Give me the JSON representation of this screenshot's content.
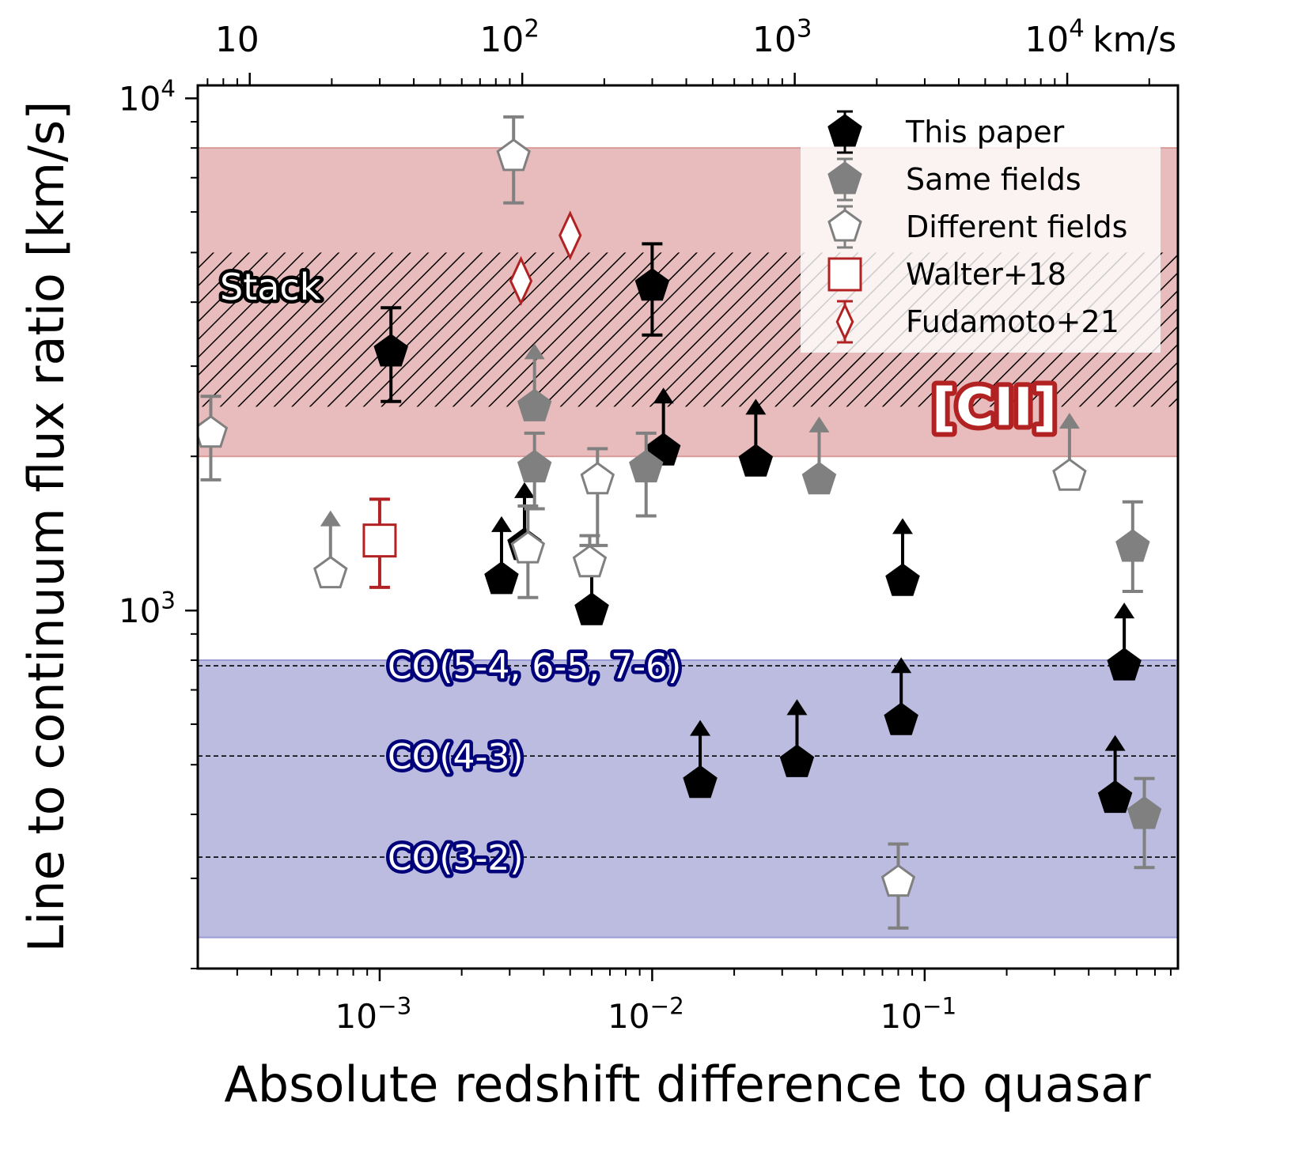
{
  "chart_data": {
    "type": "scatter",
    "xscale": "log",
    "yscale": "log",
    "xlim": [
      0.000215,
      0.85
    ],
    "ylim": [
      200,
      10600
    ],
    "xlabel": "Absolute redshift difference to quasar",
    "ylabel": "Line to continuum flux ratio [km/s]",
    "x_ticks": [
      {
        "value": 0.001,
        "base": "10",
        "exp": "−3"
      },
      {
        "value": 0.01,
        "base": "10",
        "exp": "−2"
      },
      {
        "value": 0.1,
        "base": "10",
        "exp": "−1"
      }
    ],
    "y_ticks": [
      {
        "value": 1000,
        "base": "10",
        "exp": "3"
      },
      {
        "value": 10000,
        "base": "10",
        "exp": "4"
      }
    ],
    "top_axis": {
      "unit": "km/s",
      "ticks": [
        {
          "value": 0.000299792,
          "text": "10",
          "base": "",
          "exp": ""
        },
        {
          "value": 0.00299792,
          "text": "",
          "base": "10",
          "exp": "2"
        },
        {
          "value": 0.0299792,
          "text": "",
          "base": "10",
          "exp": "3"
        },
        {
          "value": 0.299792,
          "text": "",
          "base": "10",
          "exp": "4"
        }
      ]
    },
    "bands": [
      {
        "name": "[CII]",
        "label": "[CII]",
        "range": [
          2000,
          8000
        ],
        "color": "#e8bcbc"
      },
      {
        "name": "CO",
        "range": [
          230,
          800
        ],
        "color": "#bbbcdf"
      }
    ],
    "stack": {
      "label": "Stack",
      "range": [
        2500,
        5000
      ]
    },
    "reference_lines": [
      {
        "label": "CO(5-4, 6-5, 7-6)",
        "y": 780
      },
      {
        "label": "CO(4-3)",
        "y": 520
      },
      {
        "label": "CO(3-2)",
        "y": 330
      }
    ],
    "legend": {
      "position": "top-right",
      "entries": [
        {
          "label": "This paper",
          "marker": "pentagon",
          "style": "this"
        },
        {
          "label": "Same fields",
          "marker": "pentagon",
          "style": "same"
        },
        {
          "label": "Different fields",
          "marker": "pentagon",
          "style": "diff"
        },
        {
          "label": "Walter+18",
          "marker": "square",
          "style": "walter"
        },
        {
          "label": "Fudamoto+21",
          "marker": "diamond",
          "style": "fuda"
        }
      ]
    },
    "series": [
      {
        "name": "This paper",
        "points": [
          {
            "x": 0.0011,
            "y": 3200,
            "ylo": 2560,
            "yhi": 3900
          },
          {
            "x": 0.01,
            "y": 4300,
            "ylo": 3450,
            "yhi": 5200
          },
          {
            "x": 0.0028,
            "y": 1150,
            "limit": "lower"
          },
          {
            "x": 0.0034,
            "y": 1340,
            "limit": "lower"
          },
          {
            "x": 0.006,
            "y": 1000,
            "limit": "lower"
          },
          {
            "x": 0.011,
            "y": 2050,
            "limit": "lower"
          },
          {
            "x": 0.024,
            "y": 1950,
            "limit": "lower"
          },
          {
            "x": 0.083,
            "y": 1140,
            "limit": "lower"
          },
          {
            "x": 0.015,
            "y": 460,
            "limit": "lower"
          },
          {
            "x": 0.034,
            "y": 505,
            "limit": "lower"
          },
          {
            "x": 0.082,
            "y": 610,
            "limit": "lower"
          },
          {
            "x": 0.54,
            "y": 780,
            "limit": "lower"
          },
          {
            "x": 0.5,
            "y": 430,
            "limit": "lower"
          }
        ]
      },
      {
        "name": "Same fields",
        "points": [
          {
            "x": 0.0037,
            "y": 1900,
            "ylo": 1580,
            "yhi": 2220
          },
          {
            "x": 0.0095,
            "y": 1900,
            "ylo": 1530,
            "yhi": 2220
          },
          {
            "x": 0.58,
            "y": 1330,
            "ylo": 1090,
            "yhi": 1630
          },
          {
            "x": 0.64,
            "y": 400,
            "ylo": 315,
            "yhi": 470
          },
          {
            "x": 0.0037,
            "y": 2500,
            "limit": "lower"
          },
          {
            "x": 0.041,
            "y": 1800,
            "limit": "lower"
          }
        ]
      },
      {
        "name": "Different fields",
        "points": [
          {
            "x": 0.00024,
            "y": 2220,
            "ylo": 1800,
            "yhi": 2620
          },
          {
            "x": 0.0031,
            "y": 7700,
            "ylo": 6250,
            "yhi": 9200
          },
          {
            "x": 0.0035,
            "y": 1320,
            "ylo": 1060,
            "yhi": 1600
          },
          {
            "x": 0.0063,
            "y": 1800,
            "ylo": 1340,
            "yhi": 2070
          },
          {
            "x": 0.0059,
            "y": 1240,
            "ylo": 1340,
            "yhi": 1400
          },
          {
            "x": 0.08,
            "y": 295,
            "ylo": 240,
            "yhi": 350
          },
          {
            "x": 0.00066,
            "y": 1180,
            "limit": "lower"
          },
          {
            "x": 0.34,
            "y": 1830,
            "limit": "lower"
          }
        ]
      },
      {
        "name": "Walter+18",
        "points": [
          {
            "x": 0.001,
            "y": 1370,
            "ylo": 1110,
            "yhi": 1650
          }
        ]
      },
      {
        "name": "Fudamoto+21",
        "points": [
          {
            "x": 0.0033,
            "y": 4400
          },
          {
            "x": 0.005,
            "y": 5400
          }
        ]
      }
    ]
  }
}
